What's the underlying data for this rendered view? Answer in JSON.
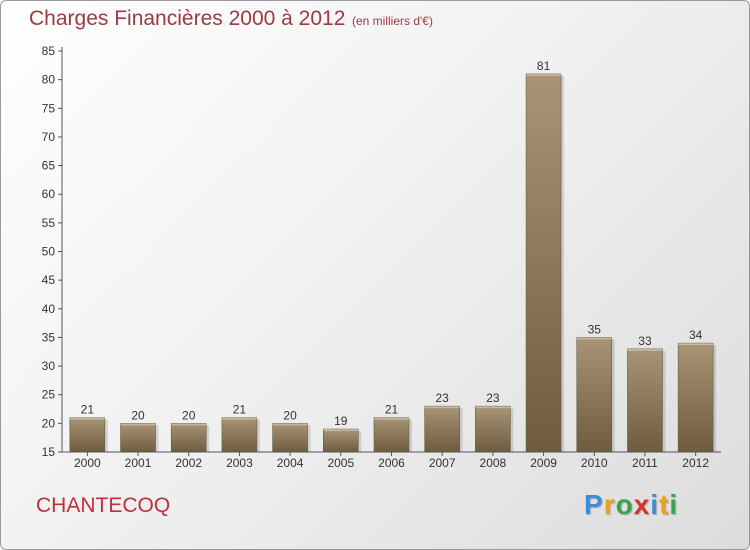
{
  "title": "Charges Financières 2000 à 2012",
  "subtitle": "(en milliers d'€)",
  "commune": "CHANTECOQ",
  "logo": {
    "letters": [
      "P",
      "r",
      "o",
      "x",
      "i",
      "t",
      "i"
    ]
  },
  "colors": {
    "title": "#9b3a41",
    "commune": "#c0303c",
    "bar_light": "#a89576",
    "bar_dark": "#6f5b3e",
    "axis": "#444444"
  },
  "chart_data": {
    "type": "bar",
    "categories": [
      "2000",
      "2001",
      "2002",
      "2003",
      "2004",
      "2005",
      "2006",
      "2007",
      "2008",
      "2009",
      "2010",
      "2011",
      "2012"
    ],
    "values": [
      21,
      20,
      20,
      21,
      20,
      19,
      21,
      23,
      23,
      81,
      35,
      33,
      34
    ],
    "title": "Charges Financières 2000 à 2012",
    "subtitle": "(en milliers d'€)",
    "ylim": [
      15,
      85
    ],
    "yticks": [
      15,
      20,
      25,
      30,
      35,
      40,
      45,
      50,
      55,
      60,
      65,
      70,
      75,
      80,
      85
    ],
    "grid": false,
    "legend": "none"
  }
}
